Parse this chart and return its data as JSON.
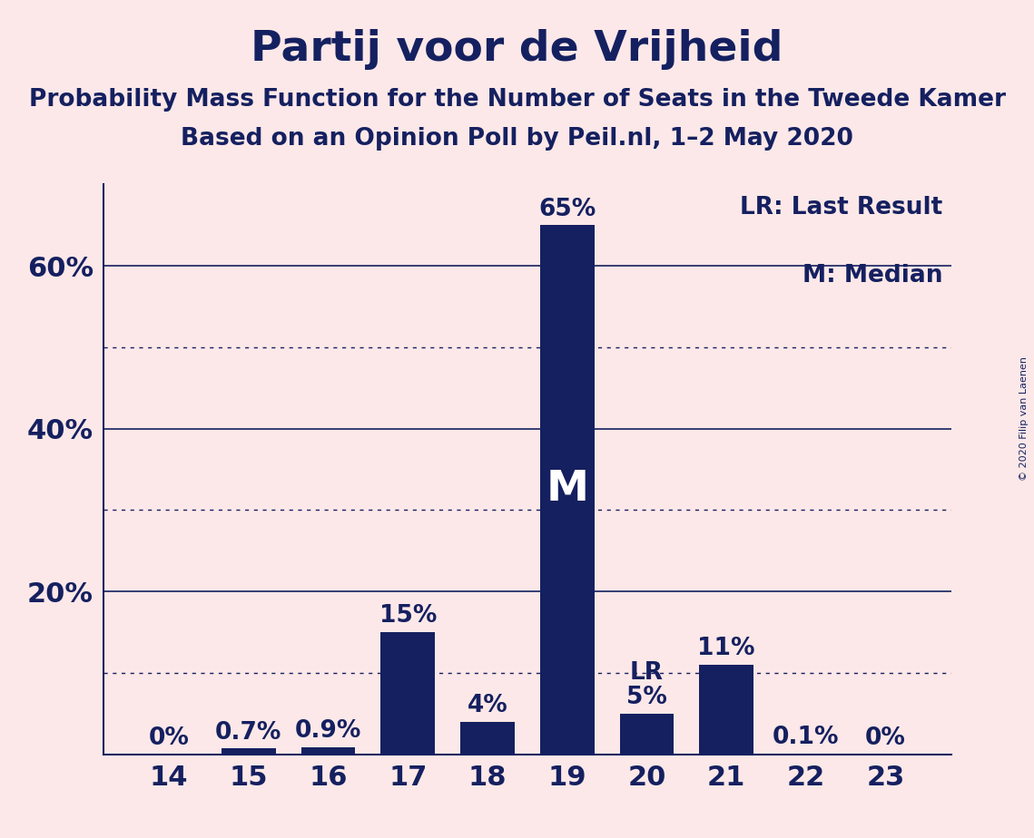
{
  "title": "Partij voor de Vrijheid",
  "subtitle1": "Probability Mass Function for the Number of Seats in the Tweede Kamer",
  "subtitle2": "Based on an Opinion Poll by Peil.nl, 1–2 May 2020",
  "copyright": "© 2020 Filip van Laenen",
  "categories": [
    14,
    15,
    16,
    17,
    18,
    19,
    20,
    21,
    22,
    23
  ],
  "values": [
    0.0,
    0.7,
    0.9,
    15.0,
    4.0,
    65.0,
    5.0,
    11.0,
    0.1,
    0.0
  ],
  "bar_color": "#152060",
  "background_color": "#fce8e8",
  "text_color": "#152060",
  "white": "#ffffff",
  "bar_labels": [
    "0%",
    "0.7%",
    "0.9%",
    "15%",
    "4%",
    "65%",
    "5%",
    "11%",
    "0.1%",
    "0%"
  ],
  "median_bar_value": 19,
  "lr_bar_value": 20,
  "ylim_max": 70,
  "solid_gridlines": [
    20,
    40,
    60
  ],
  "dotted_gridlines": [
    10,
    30,
    50
  ],
  "ytick_display": [
    [
      0,
      ""
    ],
    [
      20,
      "20%"
    ],
    [
      40,
      "40%"
    ],
    [
      60,
      "60%"
    ]
  ],
  "legend_text": [
    "LR: Last Result",
    "M: Median"
  ],
  "title_fontsize": 34,
  "subtitle_fontsize": 19,
  "label_fontsize": 19,
  "tick_fontsize": 22,
  "ytick_fontsize": 22,
  "legend_fontsize": 19,
  "inside_label_fontsize": 34
}
